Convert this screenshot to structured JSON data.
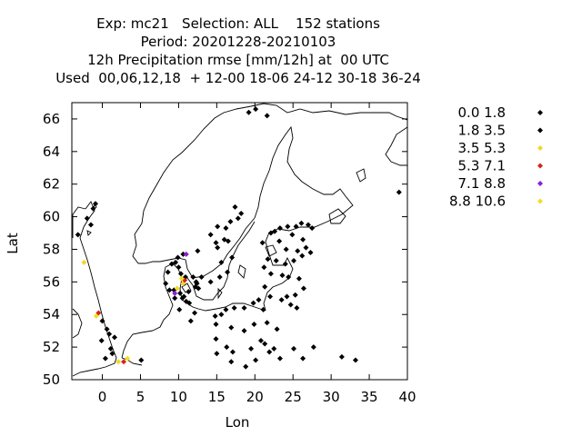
{
  "header": {
    "lines": [
      "Exp: mc21   Selection: ALL    152 stations",
      "Period: 20201228-20210103",
      "12h Precipitation rmse [mm/12h] at  00 UTC",
      "Used  00,06,12,18  + 12-00 18-06 24-12 30-18 36-24"
    ]
  },
  "chart_data": {
    "type": "scatter",
    "xlabel": "Lon",
    "ylabel": "Lat",
    "xlim": [
      -4,
      40
    ],
    "ylim": [
      50,
      67
    ],
    "xticks": [
      "0",
      "5",
      "10",
      "15",
      "20",
      "25",
      "30",
      "35",
      "40"
    ],
    "xtick_values": [
      0,
      5,
      10,
      15,
      20,
      25,
      30,
      35,
      40
    ],
    "yticks": [
      "50",
      "52",
      "54",
      "56",
      "58",
      "60",
      "62",
      "64",
      "66"
    ],
    "ytick_values": [
      50,
      52,
      54,
      56,
      58,
      60,
      62,
      64,
      66
    ],
    "legend": [
      {
        "label": "0.0 1.8",
        "color": "#000000"
      },
      {
        "label": "1.8 3.5",
        "color": "#000000"
      },
      {
        "label": "3.5 5.3",
        "color": "#f2d72a"
      },
      {
        "label": "5.3 7.1",
        "color": "#d2261a"
      },
      {
        "label": "7.1 8.8",
        "color": "#8a1fd6"
      },
      {
        "label": "8.8 10.6",
        "color": "#f0e020"
      }
    ],
    "series": [
      {
        "name": "0.0 1.8",
        "color": "#000000",
        "points": [
          [
            19.2,
            66.4
          ],
          [
            20.1,
            66.6
          ],
          [
            21.6,
            66.2
          ],
          [
            38.9,
            61.5
          ],
          [
            -1.2,
            60.5
          ],
          [
            -0.9,
            60.8
          ],
          [
            -1.5,
            59.5
          ],
          [
            -2.0,
            59.9
          ],
          [
            -3.2,
            58.9
          ],
          [
            16.2,
            59.3
          ],
          [
            17.8,
            59.9
          ],
          [
            18.2,
            60.2
          ],
          [
            16.8,
            59.7
          ],
          [
            17.4,
            60.6
          ],
          [
            15.1,
            59.4
          ],
          [
            14.2,
            58.9
          ],
          [
            12.5,
            57.9
          ],
          [
            14.9,
            58.4
          ],
          [
            16.0,
            58.6
          ],
          [
            15.6,
            57.2
          ],
          [
            13.0,
            56.3
          ],
          [
            14.2,
            56.0
          ],
          [
            15.4,
            56.3
          ],
          [
            16.4,
            56.6
          ],
          [
            17.0,
            57.5
          ],
          [
            16.5,
            58.5
          ],
          [
            15.1,
            58.1
          ],
          [
            21.0,
            58.4
          ],
          [
            22.1,
            59.0
          ],
          [
            22.6,
            59.1
          ],
          [
            23.3,
            59.3
          ],
          [
            24.3,
            59.4
          ],
          [
            24.9,
            58.9
          ],
          [
            25.4,
            59.4
          ],
          [
            26.1,
            59.6
          ],
          [
            27.0,
            59.5
          ],
          [
            27.5,
            59.3
          ],
          [
            26.3,
            58.6
          ],
          [
            25.6,
            57.9
          ],
          [
            24.1,
            58.0
          ],
          [
            23.2,
            58.5
          ],
          [
            26.7,
            58.1
          ],
          [
            27.3,
            57.8
          ],
          [
            26.2,
            57.6
          ],
          [
            25.1,
            57.3
          ],
          [
            24.0,
            57.1
          ],
          [
            22.8,
            57.3
          ],
          [
            21.7,
            57.4
          ],
          [
            21.2,
            56.9
          ],
          [
            22.1,
            56.5
          ],
          [
            23.6,
            56.4
          ],
          [
            24.4,
            56.3
          ],
          [
            25.8,
            56.2
          ],
          [
            26.4,
            55.6
          ],
          [
            25.3,
            55.2
          ],
          [
            24.2,
            55.1
          ],
          [
            23.5,
            54.9
          ],
          [
            22.0,
            55.1
          ],
          [
            21.3,
            55.7
          ],
          [
            24.7,
            54.6
          ],
          [
            25.5,
            54.4
          ],
          [
            21.1,
            54.3
          ],
          [
            20.5,
            54.9
          ],
          [
            19.8,
            54.7
          ],
          [
            18.6,
            54.4
          ],
          [
            17.3,
            54.4
          ],
          [
            16.2,
            54.3
          ],
          [
            15.6,
            54.0
          ],
          [
            14.8,
            53.9
          ],
          [
            14.9,
            53.4
          ],
          [
            16.9,
            53.2
          ],
          [
            18.6,
            53.0
          ],
          [
            19.9,
            53.4
          ],
          [
            21.6,
            53.5
          ],
          [
            22.9,
            53.1
          ],
          [
            20.8,
            52.4
          ],
          [
            21.3,
            52.2
          ],
          [
            22.5,
            51.9
          ],
          [
            19.5,
            51.9
          ],
          [
            17.1,
            51.7
          ],
          [
            16.3,
            52.0
          ],
          [
            14.9,
            52.5
          ],
          [
            15.0,
            51.6
          ],
          [
            16.9,
            51.1
          ],
          [
            18.8,
            50.8
          ],
          [
            20.1,
            51.2
          ],
          [
            23.3,
            51.3
          ],
          [
            21.9,
            51.7
          ],
          [
            25.1,
            51.9
          ],
          [
            26.3,
            51.3
          ],
          [
            27.7,
            52.0
          ],
          [
            31.4,
            51.4
          ],
          [
            33.2,
            51.2
          ],
          [
            12.1,
            54.1
          ],
          [
            11.6,
            53.6
          ],
          [
            10.1,
            54.3
          ],
          [
            9.5,
            55.0
          ],
          [
            9.4,
            55.5
          ],
          [
            10.2,
            55.3
          ],
          [
            10.7,
            55.1
          ],
          [
            11.3,
            55.4
          ],
          [
            12.2,
            55.7
          ],
          [
            12.6,
            55.6
          ],
          [
            12.3,
            56.0
          ],
          [
            10.9,
            56.3
          ],
          [
            10.3,
            56.5
          ],
          [
            10.0,
            56.9
          ],
          [
            9.6,
            57.2
          ],
          [
            8.6,
            56.6
          ],
          [
            8.3,
            55.9
          ],
          [
            8.8,
            55.5
          ],
          [
            9.1,
            57.1
          ],
          [
            9.9,
            57.5
          ],
          [
            10.6,
            57.7
          ],
          [
            11.9,
            56.3
          ],
          [
            12.4,
            55.9
          ],
          [
            11.0,
            54.8
          ],
          [
            10.5,
            55.0
          ],
          [
            11.4,
            54.7
          ],
          [
            0.6,
            53.1
          ],
          [
            0.9,
            52.8
          ],
          [
            -0.1,
            52.4
          ],
          [
            1.3,
            51.6
          ],
          [
            0.4,
            51.3
          ],
          [
            1.1,
            51.9
          ],
          [
            5.1,
            51.2
          ],
          [
            1.6,
            52.6
          ],
          [
            0.0,
            53.6
          ]
        ]
      },
      {
        "name": "3.5 5.3",
        "color": "#f2d72a",
        "points": [
          [
            -2.4,
            57.2
          ],
          [
            2.1,
            51.1
          ],
          [
            10.6,
            55.9
          ],
          [
            9.8,
            55.6
          ]
        ]
      },
      {
        "name": "5.3 7.1",
        "color": "#d2261a",
        "points": [
          [
            -0.5,
            54.1
          ],
          [
            2.8,
            51.1
          ],
          [
            10.8,
            56.1
          ]
        ]
      },
      {
        "name": "7.1 8.8",
        "color": "#8a1fd6",
        "points": [
          [
            11.0,
            57.7
          ],
          [
            9.5,
            55.3
          ]
        ]
      },
      {
        "name": "8.8 10.6",
        "color": "#f0e020",
        "points": [
          [
            -0.8,
            53.9
          ],
          [
            3.3,
            51.3
          ],
          [
            10.4,
            56.2
          ]
        ]
      }
    ]
  }
}
